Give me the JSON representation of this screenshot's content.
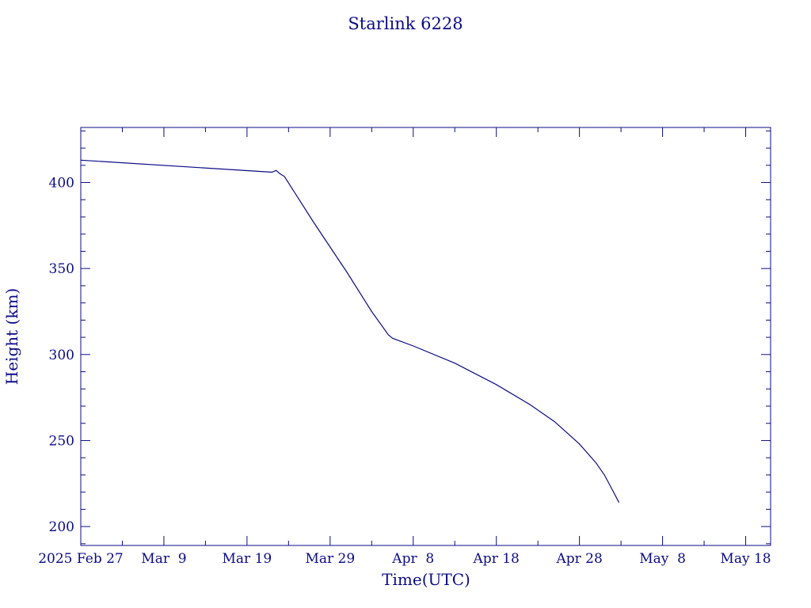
{
  "colors": {
    "ink": "#0b0b87",
    "background": "#ffffff"
  },
  "chart_data": {
    "type": "line",
    "title": "Starlink 6228",
    "xlabel": "Time(UTC)",
    "ylabel": "Height (km)",
    "x_axis": {
      "type": "date",
      "range": [
        "2025-02-27",
        "2025-05-21"
      ],
      "ticks": [
        {
          "date": "2025-02-27",
          "label": "2025 Feb 27"
        },
        {
          "date": "2025-03-09",
          "label": "Mar  9"
        },
        {
          "date": "2025-03-19",
          "label": "Mar 19"
        },
        {
          "date": "2025-03-29",
          "label": "Mar 29"
        },
        {
          "date": "2025-04-08",
          "label": "Apr  8"
        },
        {
          "date": "2025-04-18",
          "label": "Apr 18"
        },
        {
          "date": "2025-04-28",
          "label": "Apr 28"
        },
        {
          "date": "2025-05-08",
          "label": "May  8"
        },
        {
          "date": "2025-05-18",
          "label": "May 18"
        }
      ]
    },
    "y_axis": {
      "range": [
        189,
        432
      ],
      "ticks": [
        200,
        250,
        300,
        350,
        400
      ]
    },
    "grid": false,
    "series": [
      {
        "points": [
          {
            "x": "2025-02-27",
            "y": 413.0
          },
          {
            "x": "2025-03-22",
            "y": 406.0
          },
          {
            "x": "2025-03-22T12:00",
            "y": 407.0
          },
          {
            "x": "2025-03-23",
            "y": 405.0
          },
          {
            "x": "2025-03-23T12:00",
            "y": 403.5
          },
          {
            "x": "2025-03-27",
            "y": 377.0
          },
          {
            "x": "2025-03-31",
            "y": 348.0
          },
          {
            "x": "2025-04-03",
            "y": 325.0
          },
          {
            "x": "2025-04-05",
            "y": 311.5
          },
          {
            "x": "2025-04-05T12:00",
            "y": 309.5
          },
          {
            "x": "2025-04-08",
            "y": 305.0
          },
          {
            "x": "2025-04-13",
            "y": 295.0
          },
          {
            "x": "2025-04-18",
            "y": 282.5
          },
          {
            "x": "2025-04-22",
            "y": 271.0
          },
          {
            "x": "2025-04-25",
            "y": 261.0
          },
          {
            "x": "2025-04-28",
            "y": 248.0
          },
          {
            "x": "2025-04-30",
            "y": 237.0
          },
          {
            "x": "2025-05-01",
            "y": 230.0
          },
          {
            "x": "2025-05-02",
            "y": 221.0
          },
          {
            "x": "2025-05-02T18:00",
            "y": 214.0
          }
        ]
      }
    ]
  }
}
